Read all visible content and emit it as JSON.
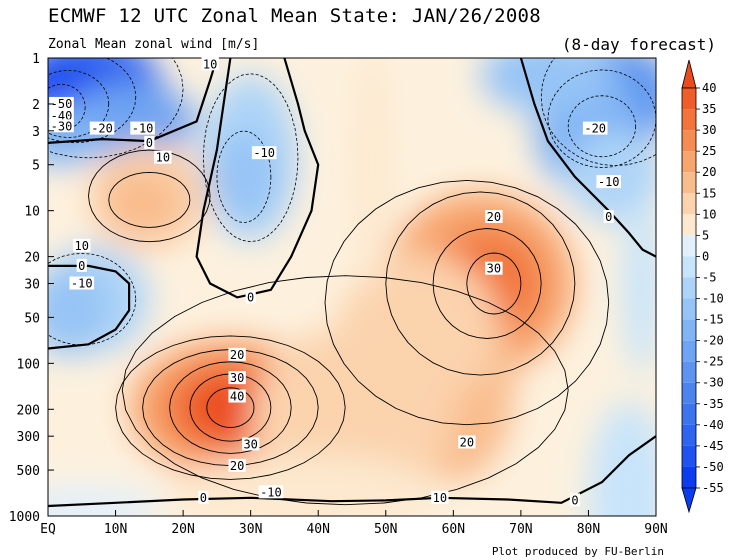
{
  "chart_data": {
    "type": "heatmap",
    "title": "ECMWF 12 UTC Zonal Mean State: JAN/26/2008",
    "subtitle": "Zonal Mean zonal wind [m/s]",
    "annotation": "(8-day forecast)",
    "credit": "Plot produced by FU-Berlin",
    "x_ticks": [
      "EQ",
      "10N",
      "20N",
      "30N",
      "40N",
      "50N",
      "60N",
      "70N",
      "80N",
      "90N"
    ],
    "y_ticks": [
      "1",
      "2",
      "3",
      "5",
      "10",
      "20",
      "30",
      "50",
      "100",
      "200",
      "300",
      "500",
      "1000"
    ],
    "y_scale": "log",
    "y_reversed": true,
    "xlim": [
      0,
      90
    ],
    "ylim": [
      1000,
      1
    ],
    "colorbar": {
      "levels": [
        40,
        35,
        30,
        25,
        20,
        15,
        10,
        5,
        0,
        -5,
        -10,
        -15,
        -20,
        -25,
        -30,
        -35,
        -40,
        -45,
        -50,
        -55
      ],
      "labels": [
        "40",
        "35",
        "30",
        "25",
        "20",
        "15",
        "10",
        "5",
        "0",
        "-5",
        "-10",
        "-15",
        "-20",
        "-25",
        "-30",
        "-35",
        "-40",
        "-45",
        "-50",
        "-55"
      ]
    },
    "contour_labels": [
      {
        "text": "10",
        "lat": 24,
        "p": 1.1
      },
      {
        "text": "-50",
        "lat": 2,
        "p": 2.0
      },
      {
        "text": "-40",
        "lat": 2,
        "p": 2.4
      },
      {
        "text": "-30",
        "lat": 2,
        "p": 2.8
      },
      {
        "text": "-20",
        "lat": 8,
        "p": 2.9
      },
      {
        "text": "-10",
        "lat": 14,
        "p": 2.9
      },
      {
        "text": "0",
        "lat": 15,
        "p": 3.6
      },
      {
        "text": "10",
        "lat": 17,
        "p": 4.5
      },
      {
        "text": "-10",
        "lat": 32,
        "p": 4.2
      },
      {
        "text": "-20",
        "lat": 81,
        "p": 2.9
      },
      {
        "text": "-10",
        "lat": 83,
        "p": 6.5
      },
      {
        "text": "0",
        "lat": 83,
        "p": 11
      },
      {
        "text": "10",
        "lat": 5,
        "p": 17
      },
      {
        "text": "0",
        "lat": 5,
        "p": 23
      },
      {
        "text": "-10",
        "lat": 5,
        "p": 30
      },
      {
        "text": "20",
        "lat": 66,
        "p": 11
      },
      {
        "text": "30",
        "lat": 66,
        "p": 24
      },
      {
        "text": "0",
        "lat": 30,
        "p": 37
      },
      {
        "text": "20",
        "lat": 28,
        "p": 88
      },
      {
        "text": "30",
        "lat": 28,
        "p": 125
      },
      {
        "text": "40",
        "lat": 28,
        "p": 165
      },
      {
        "text": "30",
        "lat": 30,
        "p": 340
      },
      {
        "text": "20",
        "lat": 28,
        "p": 470
      },
      {
        "text": "20",
        "lat": 62,
        "p": 330
      },
      {
        "text": "-10",
        "lat": 33,
        "p": 700
      },
      {
        "text": "0",
        "lat": 23,
        "p": 760
      },
      {
        "text": "10",
        "lat": 58,
        "p": 760
      },
      {
        "text": "0",
        "lat": 78,
        "p": 790
      }
    ]
  }
}
